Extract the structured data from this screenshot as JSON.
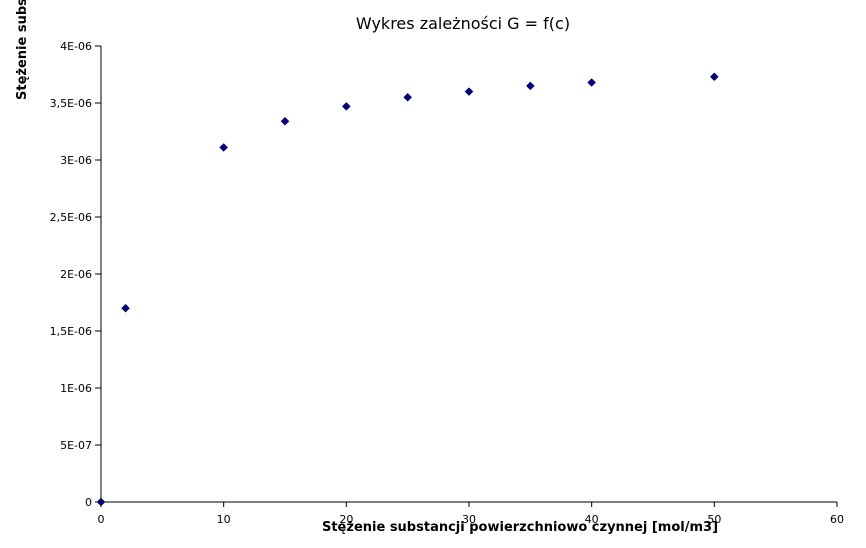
{
  "chart_data": {
    "type": "scatter",
    "title": "Wykres zależności G = f(c)",
    "xlabel": "Stężenie substancji powierzchniowo czynnej [mol/m3]",
    "ylabel": "Stężenie subs",
    "xlim": [
      0,
      60
    ],
    "ylim": [
      0,
      4e-06
    ],
    "grid": false,
    "legend": false,
    "x_ticks": [
      {
        "value": 0,
        "label": "0"
      },
      {
        "value": 10,
        "label": "10"
      },
      {
        "value": 20,
        "label": "20"
      },
      {
        "value": 30,
        "label": "30"
      },
      {
        "value": 40,
        "label": "40"
      },
      {
        "value": 50,
        "label": "50"
      },
      {
        "value": 60,
        "label": "60"
      }
    ],
    "y_ticks": [
      {
        "value": 0,
        "label": "0"
      },
      {
        "value": 5e-07,
        "label": "5E-07"
      },
      {
        "value": 1e-06,
        "label": "1E-06"
      },
      {
        "value": 1.5e-06,
        "label": "1,5E-06"
      },
      {
        "value": 2e-06,
        "label": "2E-06"
      },
      {
        "value": 2.5e-06,
        "label": "2,5E-06"
      },
      {
        "value": 3e-06,
        "label": "3E-06"
      },
      {
        "value": 3.5e-06,
        "label": "3,5E-06"
      },
      {
        "value": 4e-06,
        "label": "4E-06"
      }
    ],
    "series": [
      {
        "marker": "diamond",
        "color": "#000080",
        "points": [
          {
            "x": 0,
            "y": 0
          },
          {
            "x": 2,
            "y": 1.7e-06
          },
          {
            "x": 10,
            "y": 3.11e-06
          },
          {
            "x": 15,
            "y": 3.34e-06
          },
          {
            "x": 20,
            "y": 3.47e-06
          },
          {
            "x": 25,
            "y": 3.55e-06
          },
          {
            "x": 30,
            "y": 3.6e-06
          },
          {
            "x": 35,
            "y": 3.65e-06
          },
          {
            "x": 40,
            "y": 3.68e-06
          },
          {
            "x": 50,
            "y": 3.73e-06
          }
        ]
      }
    ]
  }
}
